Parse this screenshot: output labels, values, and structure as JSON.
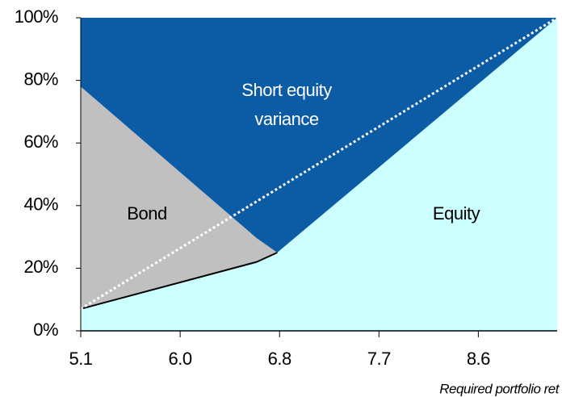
{
  "chart_data": {
    "type": "stacked_area",
    "x": [
      5.1,
      6.64,
      6.82,
      9.27
    ],
    "series": [
      {
        "name": "Equity",
        "color": "#ccffff",
        "values": [
          7,
          22,
          25,
          100
        ]
      },
      {
        "name": "Bond",
        "color": "#c0c0c0",
        "values": [
          71,
          7.6,
          0,
          0
        ]
      },
      {
        "name": "Short equity variance",
        "color": "#0b5ba5",
        "values": [
          22,
          70.4,
          75,
          0
        ]
      }
    ],
    "dotted_line": {
      "x": [
        5.1,
        9.27
      ],
      "values": [
        7,
        100
      ],
      "color": "#ffffff"
    },
    "xlabel": "Required portfolio ret",
    "xlim": [
      5.1,
      9.27
    ],
    "xticks": [
      5.1,
      {
        "value": 5.97,
        "label": "6.0"
      },
      {
        "value": 6.84,
        "label": "6.8"
      },
      {
        "value": 7.71,
        "label": "7.7"
      },
      {
        "value": 8.58,
        "label": "8.6"
      }
    ],
    "ylim": [
      0,
      100
    ],
    "yticks": [
      {
        "value": 0,
        "label": "0%"
      },
      {
        "value": 20,
        "label": "20%"
      },
      {
        "value": 40,
        "label": "40%"
      },
      {
        "value": 60,
        "label": "60%"
      },
      {
        "value": 80,
        "label": "80%"
      },
      {
        "value": 100,
        "label": "100%"
      }
    ]
  }
}
